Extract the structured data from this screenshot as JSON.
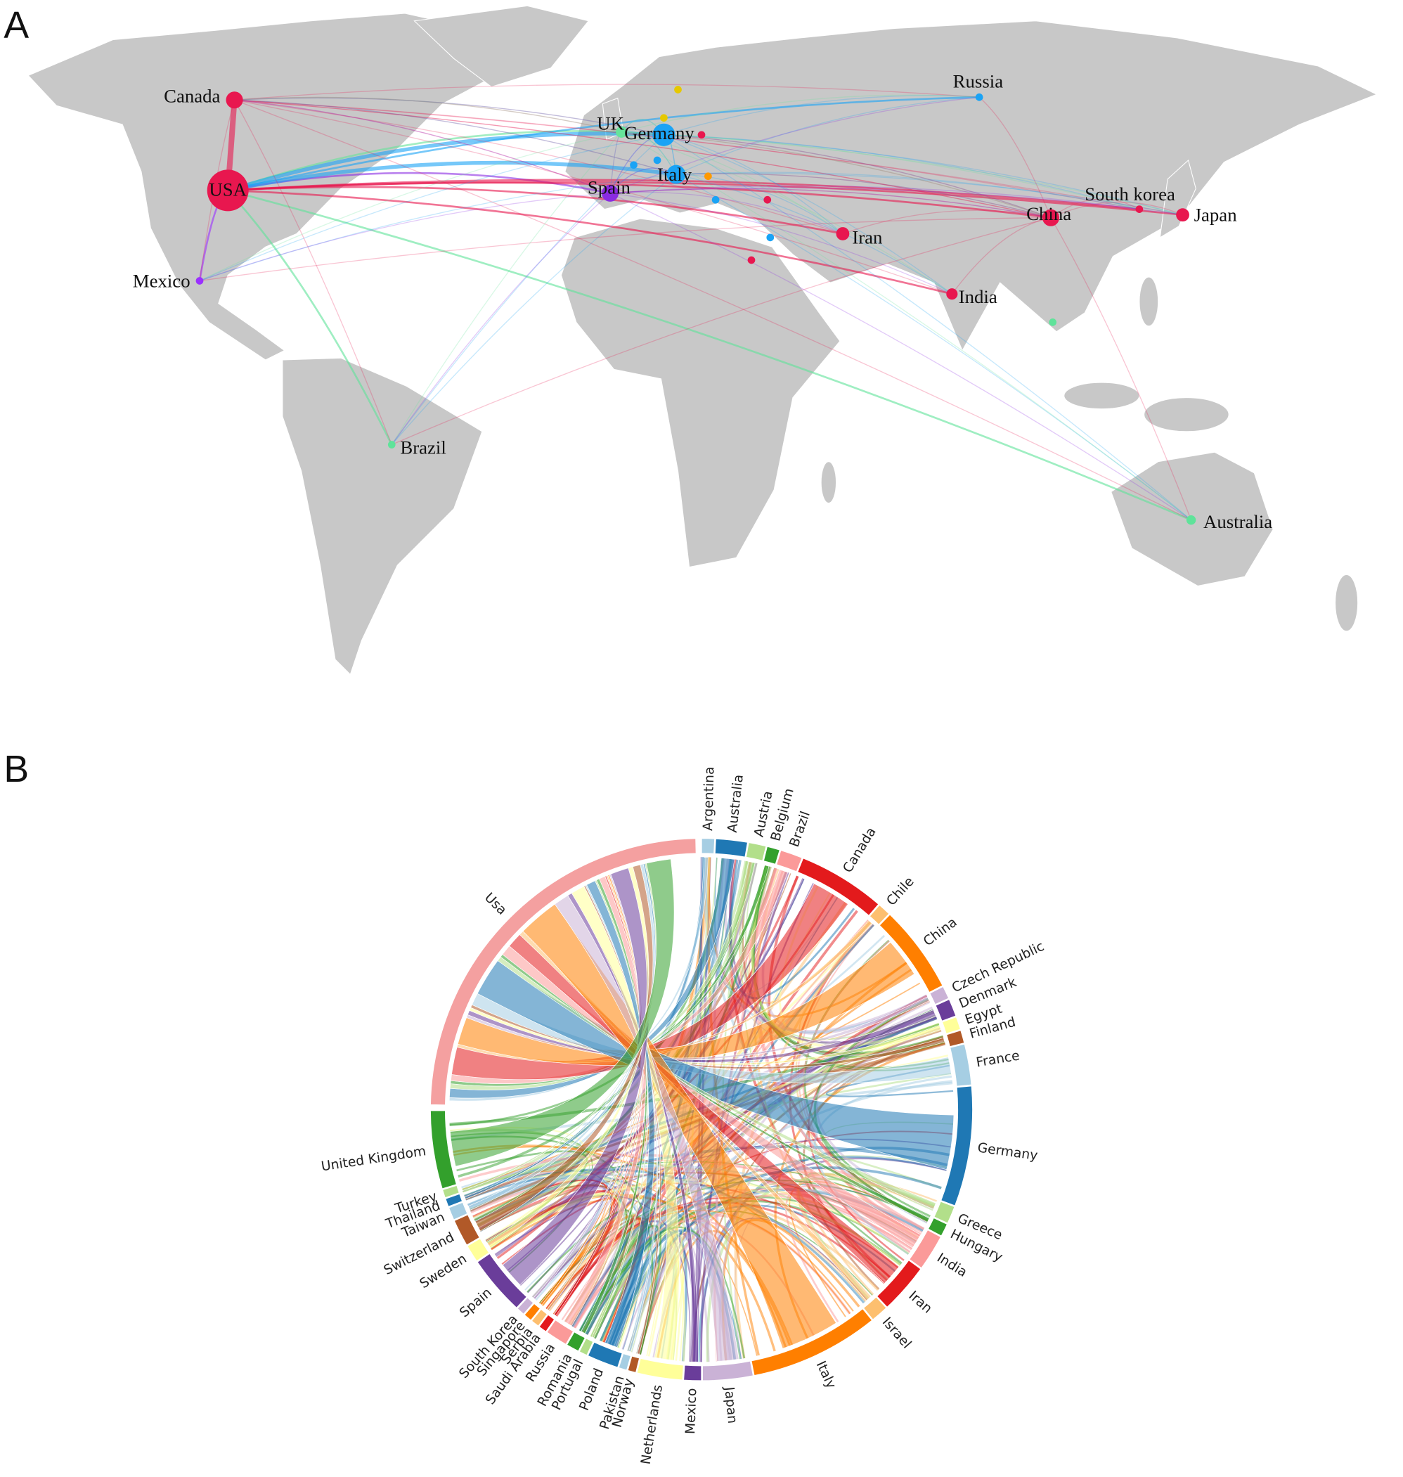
{
  "panels": [
    {
      "label": "A",
      "nodes": [
        {
          "label": "Canada",
          "color": "#e8174f"
        },
        {
          "label": "USA",
          "color": "#e8174f"
        },
        {
          "label": "Mexico",
          "color": "#9b30ff"
        },
        {
          "label": "Brazil",
          "color": "#5fe39a"
        },
        {
          "label": "UK",
          "color": "#66e39a"
        },
        {
          "label": "Germany",
          "color": "#1aa3f5"
        },
        {
          "label": "Spain",
          "color": "#8a2be2"
        },
        {
          "label": "Italy",
          "color": "#1aa3f5"
        },
        {
          "label": "Russia",
          "color": "#1aa3f5"
        },
        {
          "label": "China",
          "color": "#e8174f"
        },
        {
          "label": "South korea",
          "color": "#e8174f"
        },
        {
          "label": "Japan",
          "color": "#e8174f"
        },
        {
          "label": "Iran",
          "color": "#e8174f"
        },
        {
          "label": "India",
          "color": "#e8174f"
        },
        {
          "label": "Australia",
          "color": "#5fe39a"
        }
      ]
    },
    {
      "label": "B",
      "segments": [
        {
          "label": "Argentina",
          "color": "#a6cee3"
        },
        {
          "label": "Australia",
          "color": "#1f78b4"
        },
        {
          "label": "Austria",
          "color": "#b2df8a"
        },
        {
          "label": "Belgium",
          "color": "#33a02c"
        },
        {
          "label": "Brazil",
          "color": "#fb9a99"
        },
        {
          "label": "Canada",
          "color": "#e31a1c"
        },
        {
          "label": "Chile",
          "color": "#fdbf6f"
        },
        {
          "label": "China",
          "color": "#ff7f00"
        },
        {
          "label": "Czech Republic",
          "color": "#cab2d6"
        },
        {
          "label": "Denmark",
          "color": "#6a3d9a"
        },
        {
          "label": "Egypt",
          "color": "#ffff99"
        },
        {
          "label": "Finland",
          "color": "#b15928"
        },
        {
          "label": "France",
          "color": "#a6cee3"
        },
        {
          "label": "Germany",
          "color": "#1f78b4"
        },
        {
          "label": "Greece",
          "color": "#b2df8a"
        },
        {
          "label": "Hungary",
          "color": "#33a02c"
        },
        {
          "label": "India",
          "color": "#fb9a99"
        },
        {
          "label": "Iran",
          "color": "#e31a1c"
        },
        {
          "label": "Israel",
          "color": "#fdbf6f"
        },
        {
          "label": "Italy",
          "color": "#ff7f00"
        },
        {
          "label": "Japan",
          "color": "#cab2d6"
        },
        {
          "label": "Mexico",
          "color": "#6a3d9a"
        },
        {
          "label": "Netherlands",
          "color": "#ffff99"
        },
        {
          "label": "Norway",
          "color": "#b15928"
        },
        {
          "label": "Pakistan",
          "color": "#a6cee3"
        },
        {
          "label": "Poland",
          "color": "#1f78b4"
        },
        {
          "label": "Portugal",
          "color": "#b2df8a"
        },
        {
          "label": "Romania",
          "color": "#33a02c"
        },
        {
          "label": "Russia",
          "color": "#fb9a99"
        },
        {
          "label": "Saudi Arabia",
          "color": "#e31a1c"
        },
        {
          "label": "Serbia",
          "color": "#fdbf6f"
        },
        {
          "label": "Singapore",
          "color": "#ff7f00"
        },
        {
          "label": "South Korea",
          "color": "#cab2d6"
        },
        {
          "label": "Spain",
          "color": "#6a3d9a"
        },
        {
          "label": "Sweden",
          "color": "#ffff99"
        },
        {
          "label": "Switzerland",
          "color": "#b15928"
        },
        {
          "label": "Taiwan",
          "color": "#a6cee3"
        },
        {
          "label": "Thailand",
          "color": "#1f78b4"
        },
        {
          "label": "Turkey",
          "color": "#b2df8a"
        },
        {
          "label": "United Kingdom",
          "color": "#33a02c"
        },
        {
          "label": "Usa",
          "color": "#f4a0a0"
        }
      ]
    }
  ]
}
